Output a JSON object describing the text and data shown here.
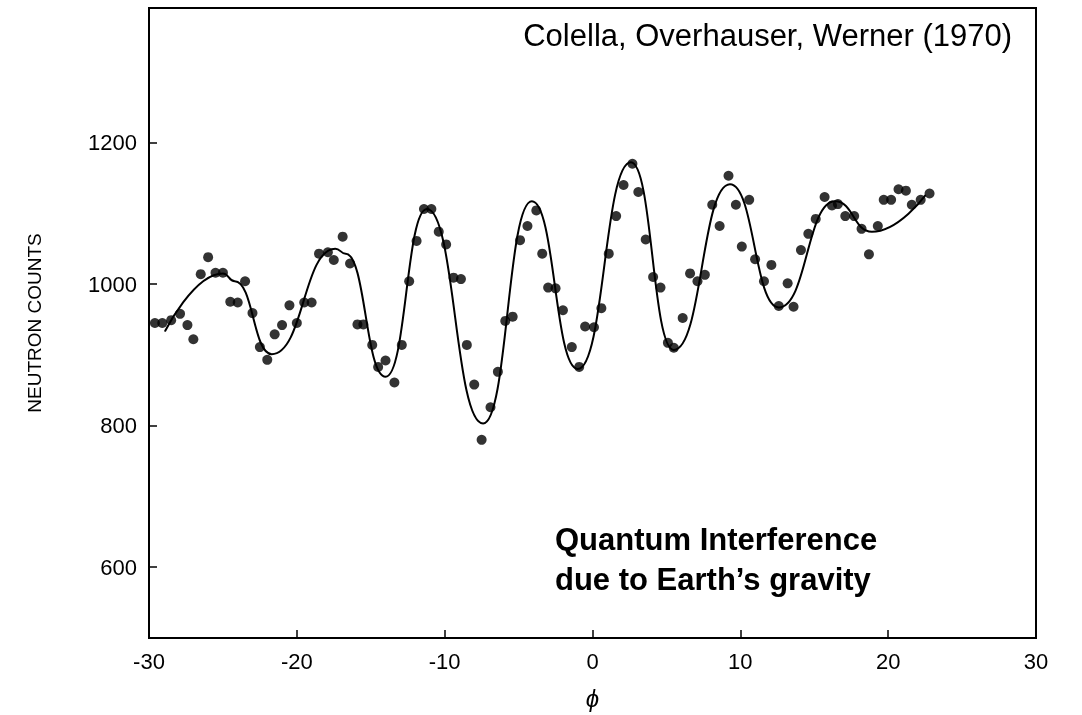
{
  "chart_data": {
    "type": "scatter",
    "xlabel": "ϕ",
    "ylabel": "NEUTRON COUNTS",
    "annotations": [
      "Colella, Overhauser, Werner (1970)",
      "Quantum Interference due to Earth’s gravity"
    ],
    "xlim": [
      -30,
      30
    ],
    "xticks": [
      -30,
      -20,
      -10,
      0,
      10,
      20,
      30
    ],
    "ylim": [
      500,
      1390
    ],
    "yticks": [
      600,
      800,
      1000,
      1200
    ],
    "grid": false,
    "marker": "circle",
    "series": [
      {
        "color": "#000000",
        "x": [
          -29.6,
          -29.1,
          -28.5,
          -27.9,
          -27.4,
          -27.0,
          -26.5,
          -26.0,
          -25.5,
          -25.0,
          -24.5,
          -24.0,
          -23.5,
          -23.0,
          -22.5,
          -22.0,
          -21.5,
          -21.0,
          -20.5,
          -20.0,
          -19.5,
          -19.0,
          -18.5,
          -17.9,
          -17.5,
          -16.9,
          -16.4,
          -15.9,
          -15.5,
          -14.9,
          -14.5,
          -14.0,
          -13.4,
          -12.9,
          -12.4,
          -11.9,
          -11.4,
          -10.9,
          -10.4,
          -9.9,
          -9.4,
          -8.9,
          -8.5,
          -8.0,
          -7.5,
          -6.9,
          -6.4,
          -5.9,
          -5.4,
          -4.9,
          -4.4,
          -3.8,
          -3.4,
          -3.0,
          -2.5,
          -2.0,
          -1.4,
          -0.9,
          -0.5,
          0.1,
          0.6,
          1.1,
          1.6,
          2.1,
          2.7,
          3.1,
          3.6,
          4.1,
          4.6,
          5.1,
          5.5,
          6.1,
          6.6,
          7.1,
          7.6,
          8.1,
          8.6,
          9.2,
          9.7,
          10.1,
          10.6,
          11.0,
          11.6,
          12.1,
          12.6,
          13.2,
          13.6,
          14.1,
          14.6,
          15.1,
          15.7,
          16.2,
          16.6,
          17.1,
          17.7,
          18.2,
          18.7,
          19.3,
          19.7,
          20.2,
          20.7,
          21.2,
          21.6,
          22.2,
          22.8
        ],
        "values": [
          945,
          945,
          949,
          958,
          942,
          922,
          1014,
          1038,
          1016,
          1016,
          975,
          974,
          1004,
          959,
          911,
          893,
          929,
          942,
          970,
          945,
          974,
          974,
          1043,
          1045,
          1034,
          1067,
          1029,
          943,
          943,
          914,
          883,
          892,
          861,
          914,
          1004,
          1061,
          1106,
          1106,
          1074,
          1056,
          1009,
          1007,
          914,
          858,
          780,
          826,
          876,
          948,
          954,
          1062,
          1082,
          1104,
          1043,
          995,
          994,
          963,
          911,
          883,
          940,
          939,
          966,
          1043,
          1096,
          1140,
          1170,
          1130,
          1063,
          1010,
          995,
          917,
          910,
          952,
          1015,
          1004,
          1013,
          1112,
          1082,
          1153,
          1112,
          1053,
          1119,
          1035,
          1004,
          1027,
          969,
          1001,
          968,
          1048,
          1071,
          1092,
          1123,
          1111,
          1113,
          1096,
          1096,
          1078,
          1042,
          1082,
          1119,
          1119,
          1134,
          1132,
          1112,
          1119,
          1128
        ]
      },
      {
        "type": "line",
        "color": "#000000",
        "marker": "none",
        "line_style": "solid",
        "x": [
          -28.9,
          -25.0,
          -24.2,
          -21.7,
          -17.4,
          -16.7,
          -14.0,
          -11.2,
          -7.4,
          -4.1,
          -1.0,
          2.6,
          5.5,
          9.3,
          12.6,
          16.4,
          18.9,
          22.5
        ],
        "values": [
          934,
          1015,
          1004,
          901,
          1050,
          1043,
          869,
          1106,
          803,
          1117,
          880,
          1172,
          907,
          1141,
          967,
          1117,
          1074,
          1125
        ]
      }
    ]
  }
}
